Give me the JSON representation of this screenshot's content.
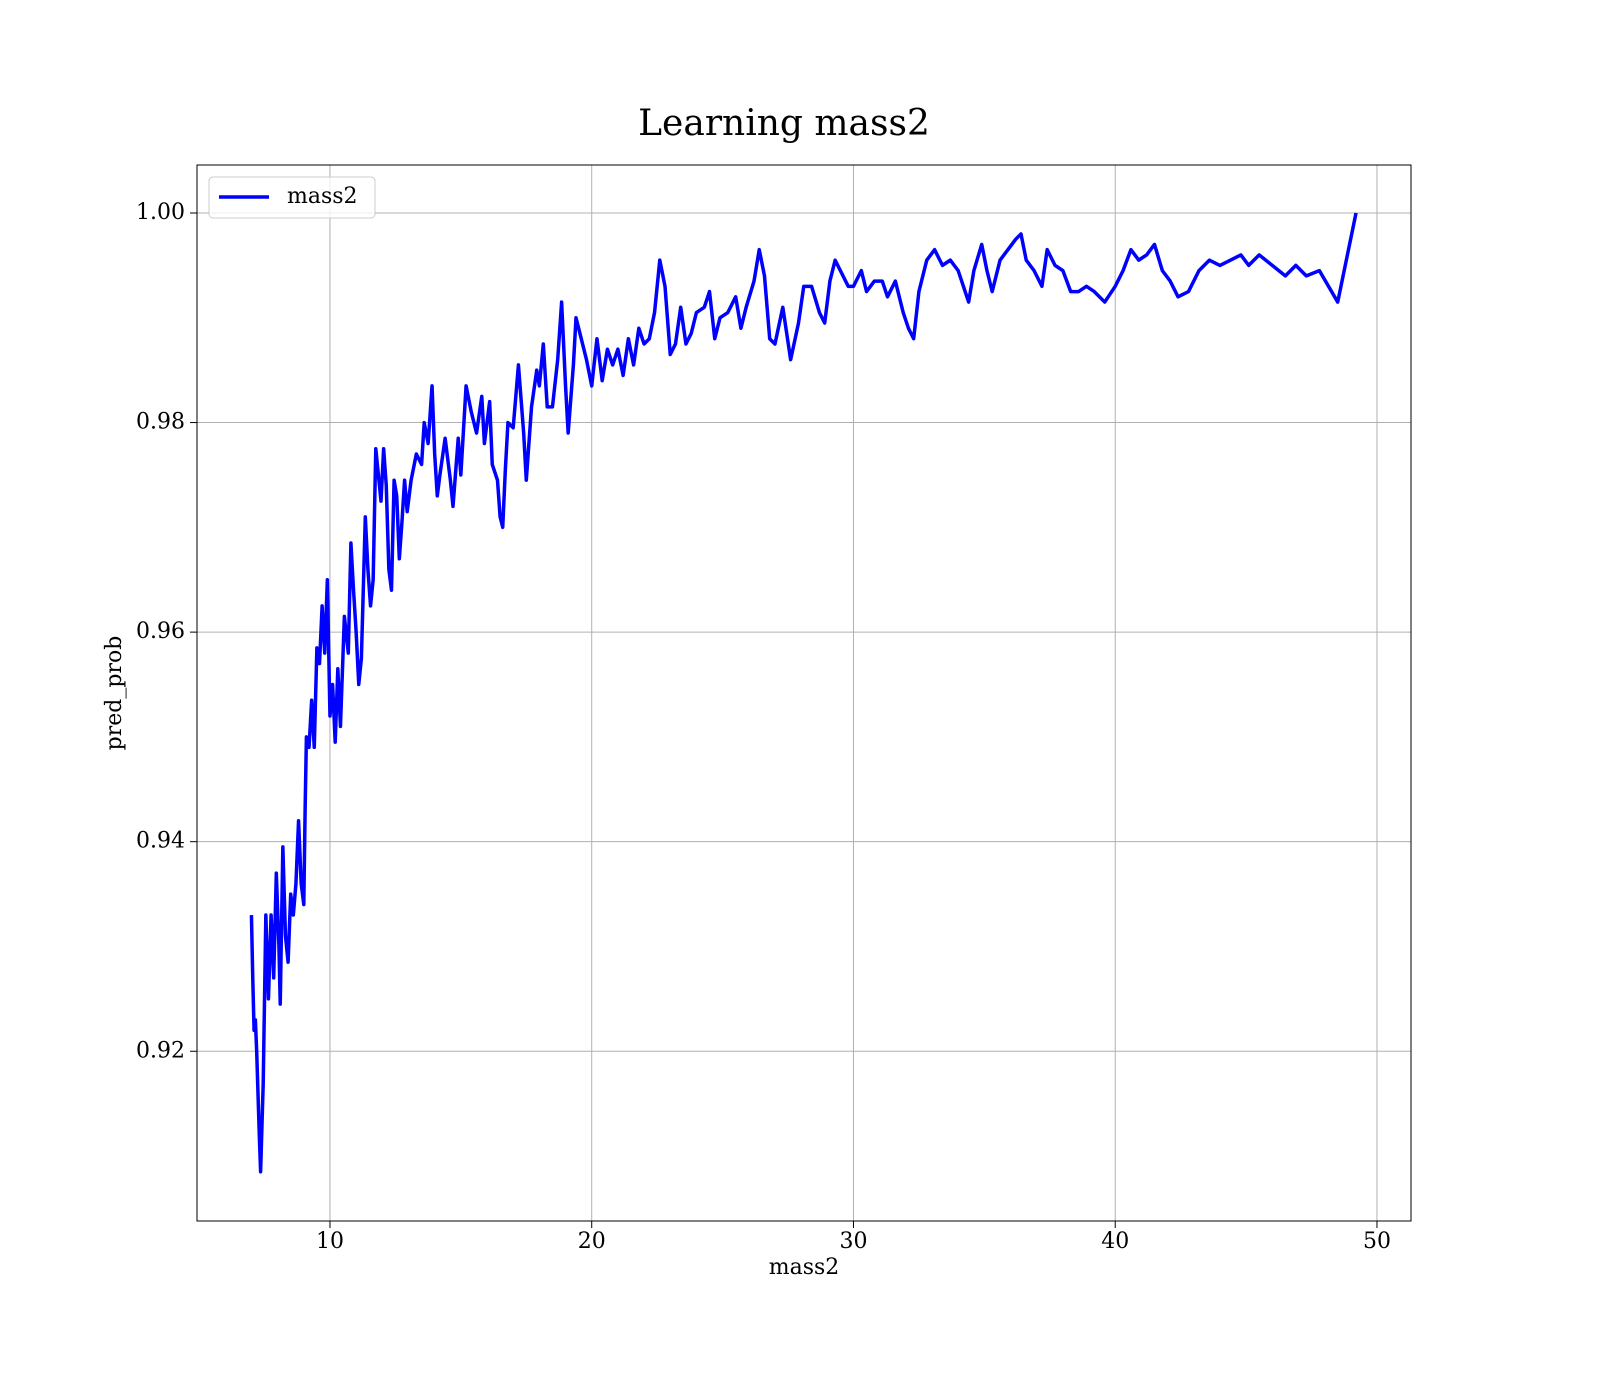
{
  "chart_data": {
    "type": "line",
    "title": "Learning mass2",
    "xlabel": "mass2",
    "ylabel": "pred_prob",
    "xlim": [
      4.92,
      51.3
    ],
    "ylim": [
      0.9038,
      1.00458
    ],
    "xticks": [
      10,
      20,
      30,
      40,
      50
    ],
    "yticks": [
      0.92,
      0.94,
      0.96,
      0.98,
      {
        "value": 1,
        "label": "1.00"
      }
    ],
    "grid": true,
    "legend": "upper left",
    "x": [
      7.0,
      7.05,
      7.1,
      7.15,
      7.2,
      7.3,
      7.35,
      7.45,
      7.55,
      7.65,
      7.75,
      7.85,
      7.95,
      8.05,
      8.1,
      8.2,
      8.3,
      8.4,
      8.5,
      8.6,
      8.7,
      8.8,
      8.9,
      9.0,
      9.05,
      9.1,
      9.2,
      9.3,
      9.4,
      9.5,
      9.6,
      9.7,
      9.8,
      9.9,
      10.0,
      10.1,
      10.2,
      10.3,
      10.4,
      10.55,
      10.7,
      10.8,
      10.9,
      11.0,
      11.1,
      11.2,
      11.35,
      11.45,
      11.55,
      11.65,
      11.75,
      11.85,
      11.95,
      12.05,
      12.15,
      12.25,
      12.35,
      12.45,
      12.55,
      12.65,
      12.75,
      12.85,
      12.95,
      13.1,
      13.3,
      13.5,
      13.6,
      13.75,
      13.9,
      14.0,
      14.1,
      14.2,
      14.4,
      14.6,
      14.7,
      14.9,
      15.0,
      15.2,
      15.4,
      15.6,
      15.8,
      15.9,
      16.1,
      16.2,
      16.4,
      16.5,
      16.6,
      16.7,
      16.8,
      17.0,
      17.2,
      17.4,
      17.5,
      17.7,
      17.9,
      18.0,
      18.15,
      18.3,
      18.5,
      18.7,
      18.85,
      19.0,
      19.1,
      19.3,
      19.4,
      19.6,
      19.8,
      20.0,
      20.2,
      20.4,
      20.6,
      20.8,
      21.0,
      21.2,
      21.4,
      21.6,
      21.8,
      22.0,
      22.2,
      22.4,
      22.6,
      22.8,
      23.0,
      23.2,
      23.4,
      23.6,
      23.8,
      24.0,
      24.3,
      24.5,
      24.7,
      24.9,
      25.2,
      25.5,
      25.7,
      25.9,
      26.2,
      26.4,
      26.6,
      26.8,
      27.0,
      27.3,
      27.6,
      27.9,
      28.1,
      28.4,
      28.7,
      28.9,
      29.1,
      29.3,
      29.5,
      29.8,
      30.0,
      30.3,
      30.5,
      30.8,
      31.1,
      31.3,
      31.6,
      31.9,
      32.1,
      32.3,
      32.5,
      32.8,
      33.1,
      33.4,
      33.7,
      34.0,
      34.2,
      34.4,
      34.6,
      34.9,
      35.1,
      35.3,
      35.6,
      35.9,
      36.2,
      36.4,
      36.6,
      36.9,
      37.2,
      37.4,
      37.7,
      38.0,
      38.3,
      38.6,
      38.9,
      39.2,
      39.6,
      40.0,
      40.3,
      40.6,
      40.9,
      41.2,
      41.5,
      41.8,
      42.1,
      42.4,
      42.8,
      43.2,
      43.6,
      44.0,
      44.4,
      44.8,
      45.1,
      45.5,
      46.0,
      46.5,
      46.9,
      47.3,
      47.8,
      48.5,
      49.2
    ],
    "series": [
      {
        "name": "mass2",
        "color": "#0000ff",
        "values": [
          0.933,
          0.927,
          0.922,
          0.923,
          0.92,
          0.912,
          0.9085,
          0.917,
          0.933,
          0.925,
          0.933,
          0.927,
          0.937,
          0.93,
          0.9245,
          0.9395,
          0.931,
          0.9285,
          0.935,
          0.933,
          0.936,
          0.942,
          0.936,
          0.934,
          0.943,
          0.95,
          0.949,
          0.9535,
          0.949,
          0.9585,
          0.957,
          0.9625,
          0.958,
          0.965,
          0.952,
          0.955,
          0.9495,
          0.9565,
          0.951,
          0.9615,
          0.958,
          0.9685,
          0.964,
          0.96,
          0.955,
          0.9575,
          0.971,
          0.966,
          0.9625,
          0.965,
          0.9775,
          0.975,
          0.9725,
          0.9775,
          0.974,
          0.966,
          0.964,
          0.9745,
          0.973,
          0.967,
          0.9705,
          0.9745,
          0.9715,
          0.9745,
          0.977,
          0.976,
          0.98,
          0.978,
          0.9835,
          0.977,
          0.973,
          0.975,
          0.9785,
          0.9745,
          0.972,
          0.9785,
          0.975,
          0.9835,
          0.981,
          0.979,
          0.9825,
          0.978,
          0.982,
          0.976,
          0.9745,
          0.971,
          0.97,
          0.9755,
          0.98,
          0.9795,
          0.9855,
          0.979,
          0.9745,
          0.9815,
          0.985,
          0.9835,
          0.9875,
          0.9815,
          0.9815,
          0.986,
          0.9915,
          0.9835,
          0.979,
          0.9855,
          0.99,
          0.988,
          0.986,
          0.9835,
          0.988,
          0.984,
          0.987,
          0.9855,
          0.987,
          0.9845,
          0.988,
          0.9855,
          0.989,
          0.9875,
          0.988,
          0.9905,
          0.9955,
          0.993,
          0.9865,
          0.9875,
          0.991,
          0.9875,
          0.9885,
          0.9905,
          0.991,
          0.9925,
          0.988,
          0.99,
          0.9905,
          0.992,
          0.989,
          0.991,
          0.9935,
          0.9965,
          0.994,
          0.988,
          0.9875,
          0.991,
          0.986,
          0.9895,
          0.993,
          0.993,
          0.9905,
          0.9895,
          0.9935,
          0.9955,
          0.9945,
          0.993,
          0.993,
          0.9945,
          0.9925,
          0.9935,
          0.9935,
          0.992,
          0.9935,
          0.9905,
          0.989,
          0.988,
          0.9925,
          0.9955,
          0.9965,
          0.995,
          0.9955,
          0.9945,
          0.993,
          0.9915,
          0.9945,
          0.997,
          0.9945,
          0.9925,
          0.9955,
          0.9965,
          0.9975,
          0.998,
          0.9955,
          0.9945,
          0.993,
          0.9965,
          0.995,
          0.9945,
          0.9925,
          0.9925,
          0.993,
          0.9925,
          0.9915,
          0.993,
          0.9945,
          0.9965,
          0.9955,
          0.996,
          0.997,
          0.9945,
          0.9935,
          0.992,
          0.9925,
          0.9945,
          0.9955,
          0.995,
          0.9955,
          0.996,
          0.995,
          0.996,
          0.995,
          0.994,
          0.995,
          0.994,
          0.9945,
          0.9915,
          1.0
        ]
      }
    ]
  }
}
